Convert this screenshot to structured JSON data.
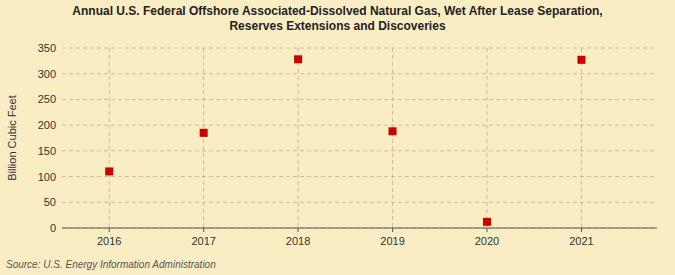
{
  "chart_data": {
    "type": "scatter",
    "title": "Annual U.S. Federal Offshore Associated-Dissolved Natural Gas, Wet After Lease Separation,\nReserves Extensions and Discoveries",
    "y_label": "Billion Cubic Feet",
    "source": "Source: U.S. Energy Information Administration",
    "x": [
      2016,
      2017,
      2018,
      2019,
      2020,
      2021
    ],
    "values": [
      110,
      185,
      328,
      188,
      12,
      327
    ],
    "color": "#cc0000",
    "marker": "square",
    "grid": true,
    "xlim": [
      2015.5,
      2021.8
    ],
    "xticks": [
      2016,
      2017,
      2018,
      2019,
      2020,
      2021
    ],
    "ylim": [
      0,
      350
    ],
    "yticks": [
      0,
      50,
      100,
      150,
      200,
      250,
      300,
      350
    ]
  }
}
